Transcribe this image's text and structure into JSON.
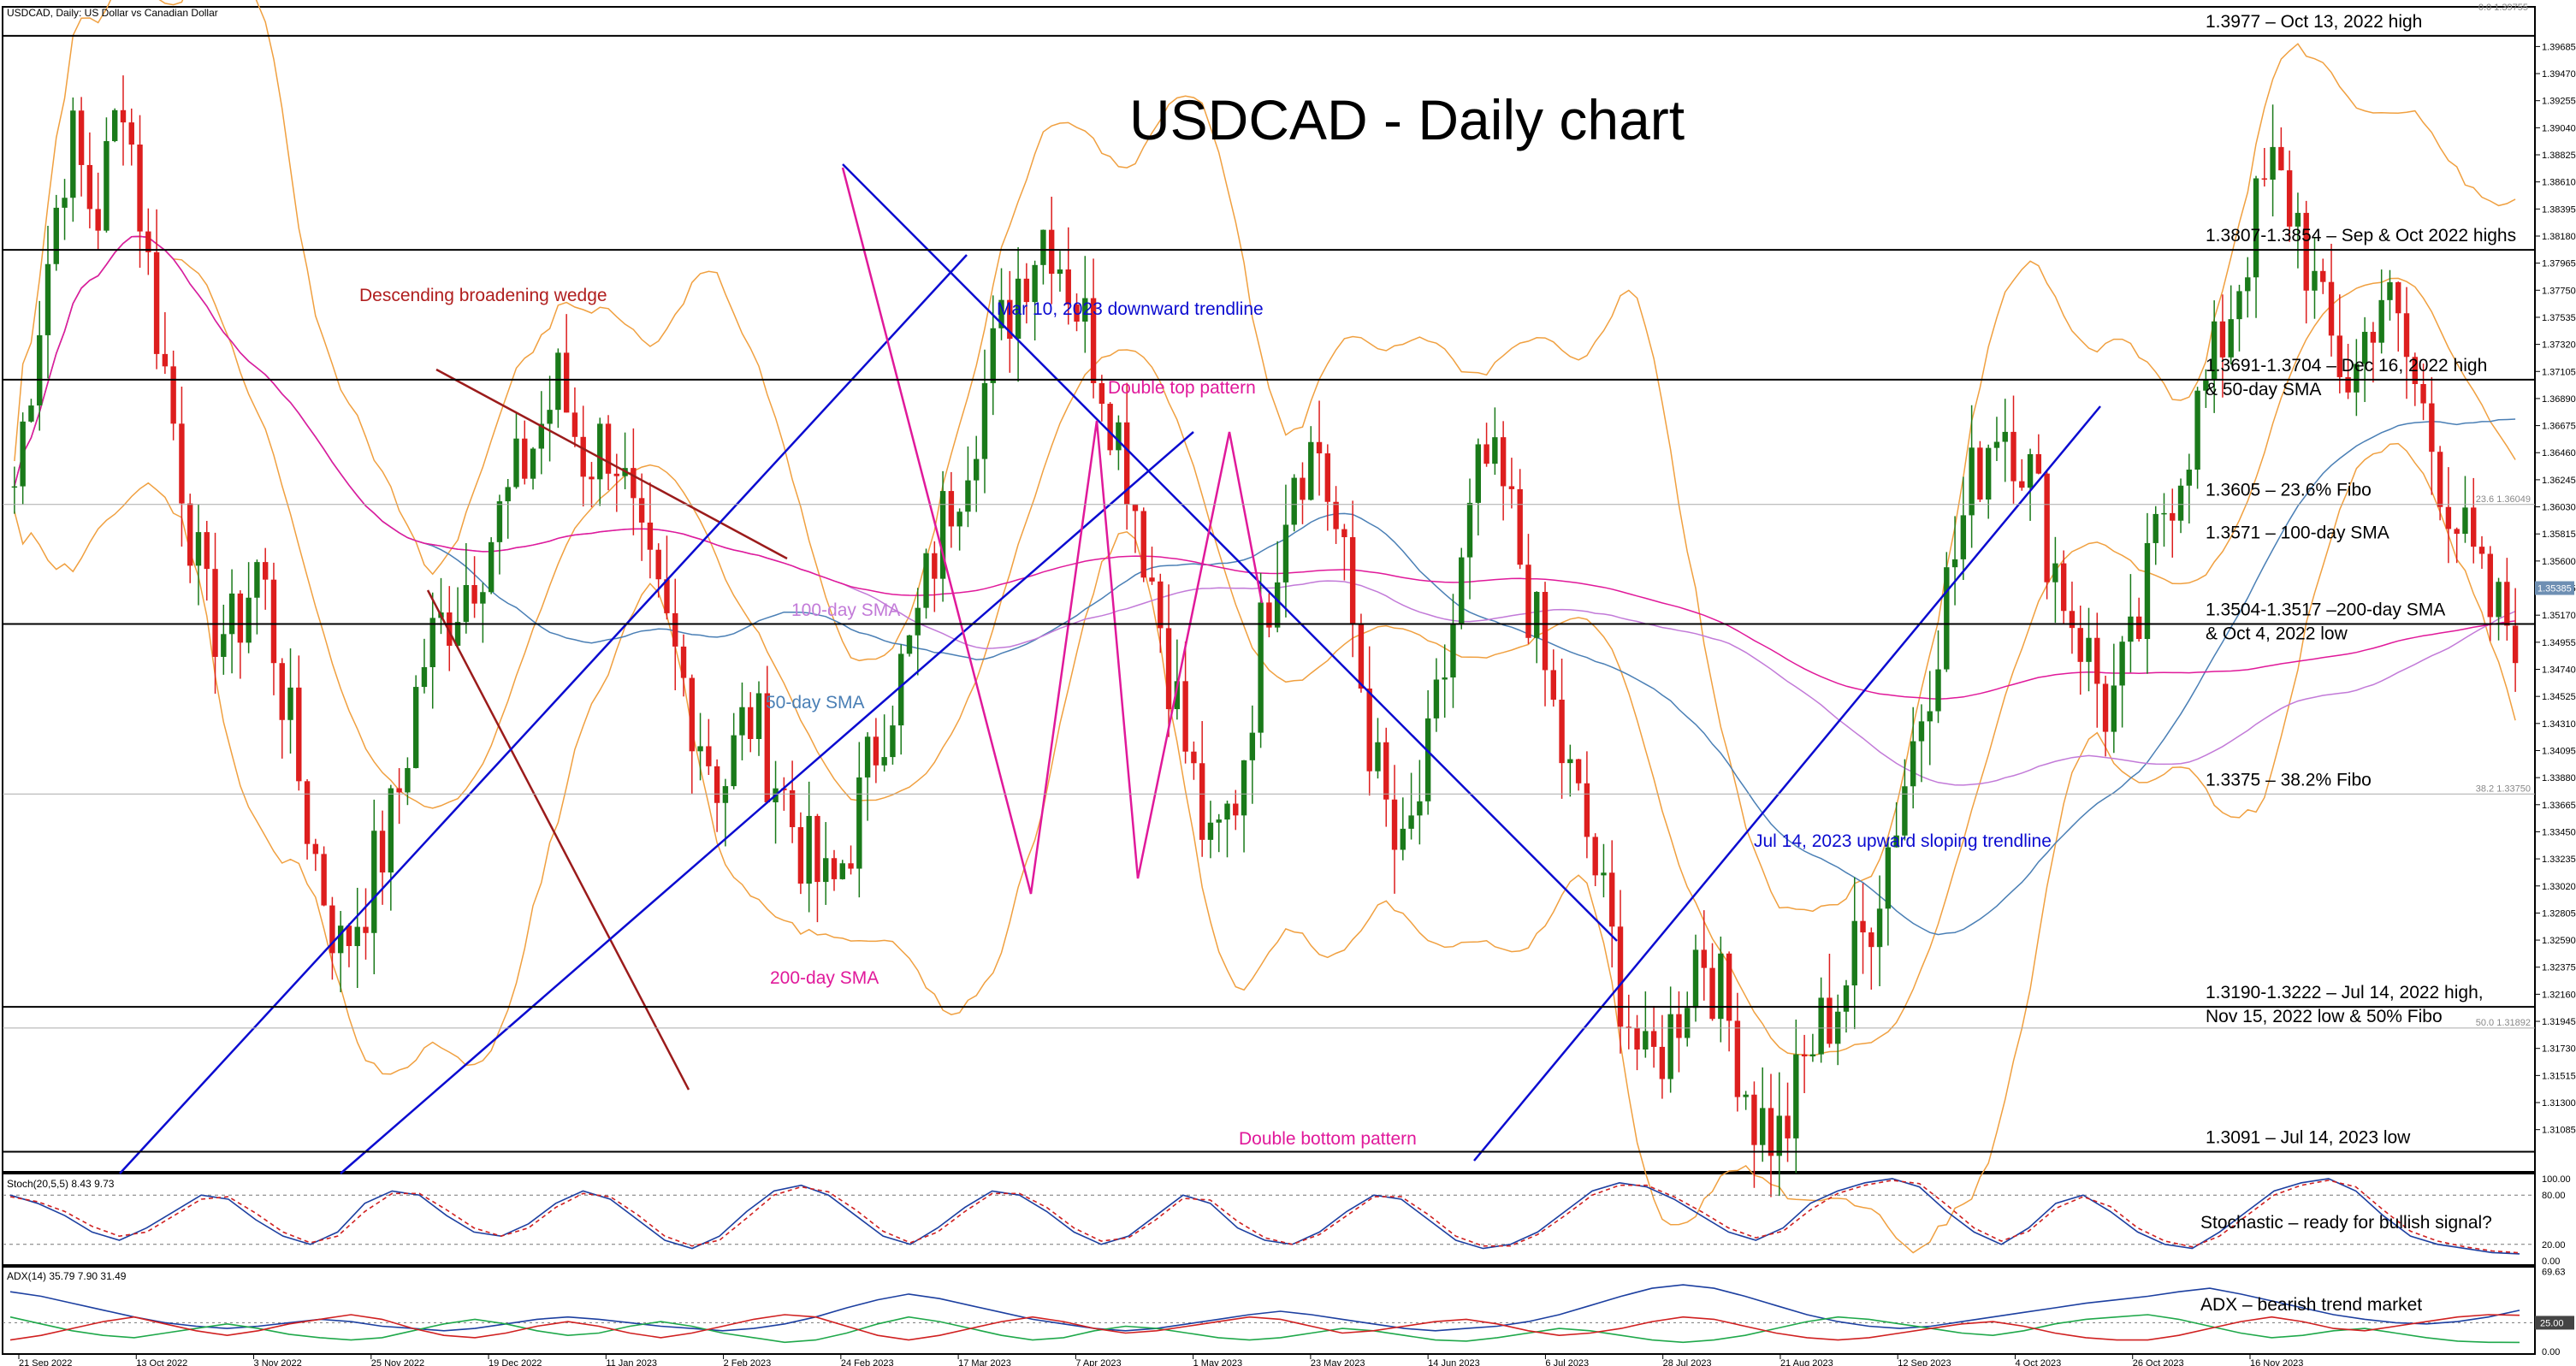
{
  "window": {
    "caption": "USDCAD, Daily:  US Dollar vs Canadian Dollar",
    "top_price_tag": "0.0 1.39755"
  },
  "chart_data": {
    "type": "candlestick",
    "title": "USDCAD - Daily chart",
    "ylim": [
      1.3075,
      1.4
    ],
    "price_ticks": [
      "1.39685",
      "1.39470",
      "1.39255",
      "1.39040",
      "1.38825",
      "1.38610",
      "1.38395",
      "1.38180",
      "1.37965",
      "1.37750",
      "1.37535",
      "1.37320",
      "1.37105",
      "1.36890",
      "1.36675",
      "1.36460",
      "1.36245",
      "1.36030",
      "1.35815",
      "1.35600",
      "1.35385",
      "1.35170",
      "1.34955",
      "1.34740",
      "1.34525",
      "1.34310",
      "1.34095",
      "1.33880",
      "1.33665",
      "1.33450",
      "1.33235",
      "1.33020",
      "1.32805",
      "1.32590",
      "1.32375",
      "1.32160",
      "1.31945",
      "1.31730",
      "1.31515",
      "1.31300",
      "1.31085"
    ],
    "current_price": "1.35385",
    "x_labels": [
      "21 Sep 2022",
      "13 Oct 2022",
      "3 Nov 2022",
      "25 Nov 2022",
      "19 Dec 2022",
      "11 Jan 2023",
      "2 Feb 2023",
      "24 Feb 2023",
      "17 Mar 2023",
      "7 Apr 2023",
      "1 May 2023",
      "23 May 2023",
      "14 Jun 2023",
      "6 Jul 2023",
      "28 Jul 2023",
      "21 Aug 2023",
      "12 Sep 2023",
      "4 Oct 2023",
      "26 Oct 2023",
      "16 Nov 2023"
    ],
    "price_path": [
      1.362,
      1.377,
      1.39,
      1.383,
      1.394,
      1.378,
      1.365,
      1.352,
      1.35,
      1.356,
      1.344,
      1.333,
      1.325,
      1.33,
      1.336,
      1.348,
      1.352,
      1.356,
      1.36,
      1.365,
      1.37,
      1.364,
      1.366,
      1.356,
      1.35,
      1.344,
      1.338,
      1.344,
      1.339,
      1.333,
      1.329,
      1.336,
      1.344,
      1.349,
      1.358,
      1.365,
      1.372,
      1.379,
      1.383,
      1.377,
      1.371,
      1.363,
      1.353,
      1.342,
      1.332,
      1.338,
      1.352,
      1.364,
      1.365,
      1.354,
      1.34,
      1.331,
      1.34,
      1.352,
      1.364,
      1.36,
      1.35,
      1.34,
      1.333,
      1.323,
      1.315,
      1.319,
      1.326,
      1.32,
      1.312,
      1.31,
      1.317,
      1.321,
      1.326,
      1.334,
      1.343,
      1.353,
      1.362,
      1.368,
      1.364,
      1.356,
      1.35,
      1.344,
      1.349,
      1.36,
      1.366,
      1.372,
      1.38,
      1.387,
      1.383,
      1.374,
      1.37,
      1.378,
      1.372,
      1.365,
      1.358,
      1.352,
      1.351
    ],
    "price_labels": [
      {
        "price": 1.3977,
        "text": "1.3977 – Oct 13, 2022 high"
      },
      {
        "price": 1.3807,
        "text": "1.3807-1.3854 – Sep & Oct 2022 highs"
      },
      {
        "price": 1.3704,
        "text": "1.3691-1.3704 – Dec 16, 2022 high",
        "text2": "& 50-day SMA"
      },
      {
        "price": 1.3605,
        "text": "1.3605 – 23.6% Fibo"
      },
      {
        "price": 1.3571,
        "text": "1.3571 – 100-day SMA"
      },
      {
        "price": 1.351,
        "text": "1.3504-1.3517 –200-day SMA",
        "text2": "& Oct 4, 2022 low"
      },
      {
        "price": 1.3375,
        "text": "1.3375 – 38.2% Fibo"
      },
      {
        "price": 1.3206,
        "text": "1.3190-1.3222 – Jul 14, 2022 high,",
        "text2": "Nov 15, 2022 low & 50% Fibo"
      },
      {
        "price": 1.3091,
        "text": "1.3091 – Jul 14, 2023 low"
      }
    ],
    "fibo_tags": [
      {
        "price": 1.36049,
        "text": "23.6 1.36049"
      },
      {
        "price": 1.3375,
        "text": "38.2 1.33750"
      },
      {
        "price": 1.31892,
        "text": "50.0 1.31892"
      }
    ],
    "annotations": [
      {
        "text": "Descending broadening wedge",
        "color": "#b01e1e"
      },
      {
        "text": "Mar 10, 2023 downward trendline",
        "color": "#0b0bd0"
      },
      {
        "text": "Double top pattern",
        "color": "#e0199a"
      },
      {
        "text": "100-day SMA",
        "color": "#c27ad8"
      },
      {
        "text": "50-day SMA",
        "color": "#4a7fb5"
      },
      {
        "text": "200-day SMA",
        "color": "#e0199a"
      },
      {
        "text": "Jul 14, 2023 upward sloping trendline",
        "color": "#0b0bd0"
      },
      {
        "text": "Double bottom pattern",
        "color": "#e0199a"
      }
    ],
    "stoch": {
      "caption": "Stoch(20,5,5) 8.43 9.73",
      "note": "Stochastic – ready for bullish signal?",
      "ticks": [
        "100.00",
        "80.00",
        "20.00",
        "0.00"
      ],
      "k": [
        80,
        70,
        55,
        35,
        25,
        40,
        60,
        80,
        75,
        50,
        30,
        20,
        35,
        70,
        85,
        80,
        55,
        35,
        30,
        45,
        70,
        85,
        75,
        50,
        25,
        15,
        30,
        60,
        85,
        92,
        80,
        55,
        30,
        20,
        40,
        65,
        85,
        80,
        60,
        35,
        20,
        30,
        55,
        80,
        70,
        40,
        25,
        20,
        35,
        60,
        80,
        75,
        50,
        25,
        15,
        20,
        35,
        60,
        85,
        95,
        90,
        75,
        55,
        35,
        25,
        40,
        70,
        85,
        95,
        100,
        90,
        60,
        35,
        20,
        40,
        70,
        80,
        60,
        35,
        20,
        15,
        35,
        60,
        85,
        95,
        100,
        85,
        55,
        30,
        20,
        15,
        10,
        8.43
      ],
      "d": [
        78,
        72,
        60,
        42,
        30,
        35,
        55,
        75,
        78,
        58,
        35,
        22,
        30,
        60,
        82,
        82,
        62,
        40,
        30,
        40,
        65,
        82,
        78,
        56,
        30,
        18,
        25,
        52,
        80,
        90,
        84,
        62,
        36,
        22,
        35,
        60,
        82,
        82,
        65,
        40,
        24,
        28,
        50,
        76,
        74,
        48,
        28,
        20,
        32,
        55,
        78,
        78,
        56,
        30,
        18,
        18,
        32,
        55,
        80,
        92,
        92,
        78,
        60,
        40,
        28,
        36,
        62,
        82,
        92,
        98,
        94,
        68,
        40,
        24,
        36,
        64,
        78,
        66,
        40,
        24,
        17,
        30,
        55,
        80,
        92,
        98,
        90,
        62,
        36,
        24,
        17,
        12,
        9.73
      ]
    },
    "adx": {
      "caption": "ADX(14) 35.79 7.90 31.49",
      "note": "ADX – bearish trend market",
      "ticks": [
        "69.63",
        "25.00",
        "0.00"
      ],
      "adx": [
        52,
        48,
        42,
        36,
        30,
        25,
        22,
        20,
        22,
        25,
        28,
        26,
        22,
        20,
        18,
        20,
        24,
        28,
        30,
        28,
        25,
        22,
        20,
        18,
        20,
        24,
        30,
        38,
        45,
        50,
        46,
        40,
        34,
        28,
        24,
        20,
        18,
        20,
        24,
        28,
        32,
        35,
        32,
        28,
        24,
        20,
        18,
        20,
        22,
        26,
        32,
        40,
        48,
        55,
        58,
        55,
        48,
        40,
        32,
        26,
        22,
        20,
        22,
        26,
        30,
        34,
        38,
        42,
        45,
        48,
        52,
        55,
        50,
        44,
        38,
        32,
        28,
        25,
        24,
        26,
        30,
        35.79
      ],
      "di_plus": [
        30,
        24,
        18,
        14,
        12,
        16,
        20,
        24,
        20,
        15,
        12,
        10,
        12,
        18,
        24,
        28,
        24,
        18,
        14,
        16,
        22,
        26,
        22,
        16,
        12,
        8,
        10,
        16,
        24,
        30,
        26,
        20,
        14,
        10,
        12,
        18,
        22,
        20,
        16,
        12,
        10,
        12,
        16,
        20,
        18,
        14,
        10,
        9,
        12,
        16,
        20,
        18,
        14,
        10,
        8,
        10,
        14,
        20,
        26,
        30,
        28,
        24,
        20,
        16,
        14,
        18,
        24,
        28,
        30,
        32,
        28,
        22,
        16,
        12,
        14,
        18,
        20,
        16,
        12,
        9,
        8,
        7.9
      ],
      "di_minus": [
        10,
        14,
        20,
        26,
        30,
        24,
        18,
        14,
        18,
        24,
        28,
        32,
        28,
        20,
        14,
        12,
        16,
        22,
        26,
        22,
        16,
        12,
        16,
        22,
        28,
        32,
        30,
        22,
        14,
        10,
        14,
        20,
        26,
        30,
        26,
        20,
        16,
        18,
        22,
        26,
        30,
        28,
        22,
        16,
        18,
        22,
        26,
        28,
        24,
        18,
        14,
        16,
        20,
        26,
        30,
        28,
        22,
        16,
        12,
        10,
        12,
        16,
        20,
        24,
        26,
        22,
        16,
        12,
        10,
        10,
        14,
        20,
        26,
        30,
        26,
        20,
        18,
        22,
        26,
        30,
        32,
        31.49
      ]
    },
    "legend_levels": {
      "stoch_level": "80.00 / 20.00",
      "adx_level": "25.00"
    }
  }
}
